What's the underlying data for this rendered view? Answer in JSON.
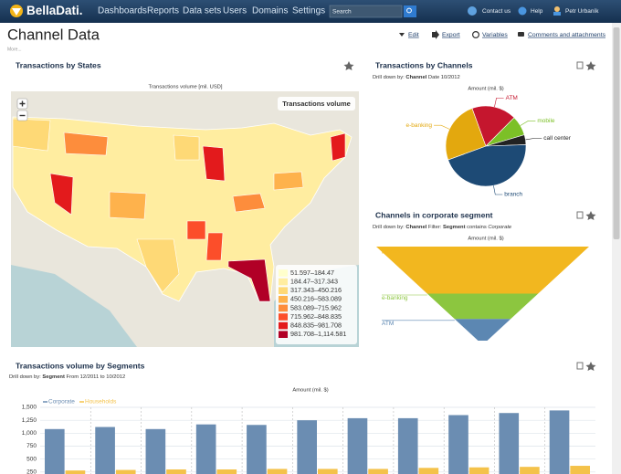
{
  "nav": {
    "logo": "BellaDati.",
    "menu": [
      "Dashboards",
      "Reports",
      "Data sets",
      "Users",
      "Domains",
      "Settings"
    ],
    "search_placeholder": "Search",
    "links": [
      "Contact us",
      "Help",
      "Petr Urbaník"
    ]
  },
  "header": {
    "title": "Channel Data",
    "more": "More...",
    "actions": [
      "Edit",
      "Export",
      "Variables",
      "Comments and attachments"
    ]
  },
  "map_panel": {
    "title": "Transactions by States",
    "subtitle": "Transactions volume [mil. USD]",
    "legend_title": "Transactions volume",
    "legend": [
      {
        "label": "51.597–184.47",
        "color": "#ffffcc"
      },
      {
        "label": "184.47–317.343",
        "color": "#ffeda0"
      },
      {
        "label": "317.343–450.216",
        "color": "#fed976"
      },
      {
        "label": "450.216–583.089",
        "color": "#feb24c"
      },
      {
        "label": "583.089–715.962",
        "color": "#fd8d3c"
      },
      {
        "label": "715.962–848.835",
        "color": "#fc4e2a"
      },
      {
        "label": "848.835–981.708",
        "color": "#e31a1c"
      },
      {
        "label": "981.708–1,114.581",
        "color": "#b10026"
      }
    ]
  },
  "chart_data": [
    {
      "type": "pie",
      "title": "Transactions by Channels",
      "drill": [
        "Drill down by:",
        "Channel",
        "Date 10/2012"
      ],
      "subtitle": "Amount (mil. $)",
      "categories": [
        "ATM",
        "mobile",
        "call center",
        "branch",
        "e-banking"
      ],
      "values": [
        18,
        8,
        4,
        45,
        25
      ],
      "colors": [
        "#c5162e",
        "#7cc027",
        "#222222",
        "#1d4a75",
        "#e3a80e"
      ]
    },
    {
      "type": "funnel",
      "title": "Channels in corporate segment",
      "drill": [
        "Drill down by:",
        "Channel",
        "Filter:",
        "Segment",
        "contains",
        "Corporate"
      ],
      "subtitle": "Amount (mil. $)",
      "categories": [
        "branch",
        "e-banking",
        "ATM"
      ],
      "values": [
        50,
        27,
        23
      ],
      "colors": [
        "#f2b71f",
        "#8cc63f",
        "#5c87b2"
      ]
    },
    {
      "type": "bar",
      "title": "Transactions volume by Segments",
      "drill": [
        "Drill down by:",
        "Segment",
        "From 12/2011 to 10/2012"
      ],
      "subtitle": "Amount (mil. $)",
      "categories": [
        null,
        null,
        null,
        null,
        null,
        null,
        null,
        null,
        null,
        null,
        null
      ],
      "series": [
        {
          "name": "Corporate",
          "color": "#6b8db2",
          "values": [
            1080,
            1120,
            1080,
            1170,
            1160,
            1250,
            1290,
            1290,
            1350,
            1390,
            1440
          ]
        },
        {
          "name": "Households",
          "color": "#f4c24a",
          "values": [
            280,
            290,
            300,
            300,
            310,
            310,
            310,
            330,
            340,
            350,
            370
          ]
        }
      ],
      "ylim": [
        0,
        1500
      ],
      "yticks": [
        250,
        500,
        750,
        {
          "value": 1000,
          "label": "1,000"
        },
        {
          "value": 1250,
          "label": "1,250"
        },
        {
          "value": 1500,
          "label": "1,500"
        }
      ],
      "grid": true
    }
  ]
}
